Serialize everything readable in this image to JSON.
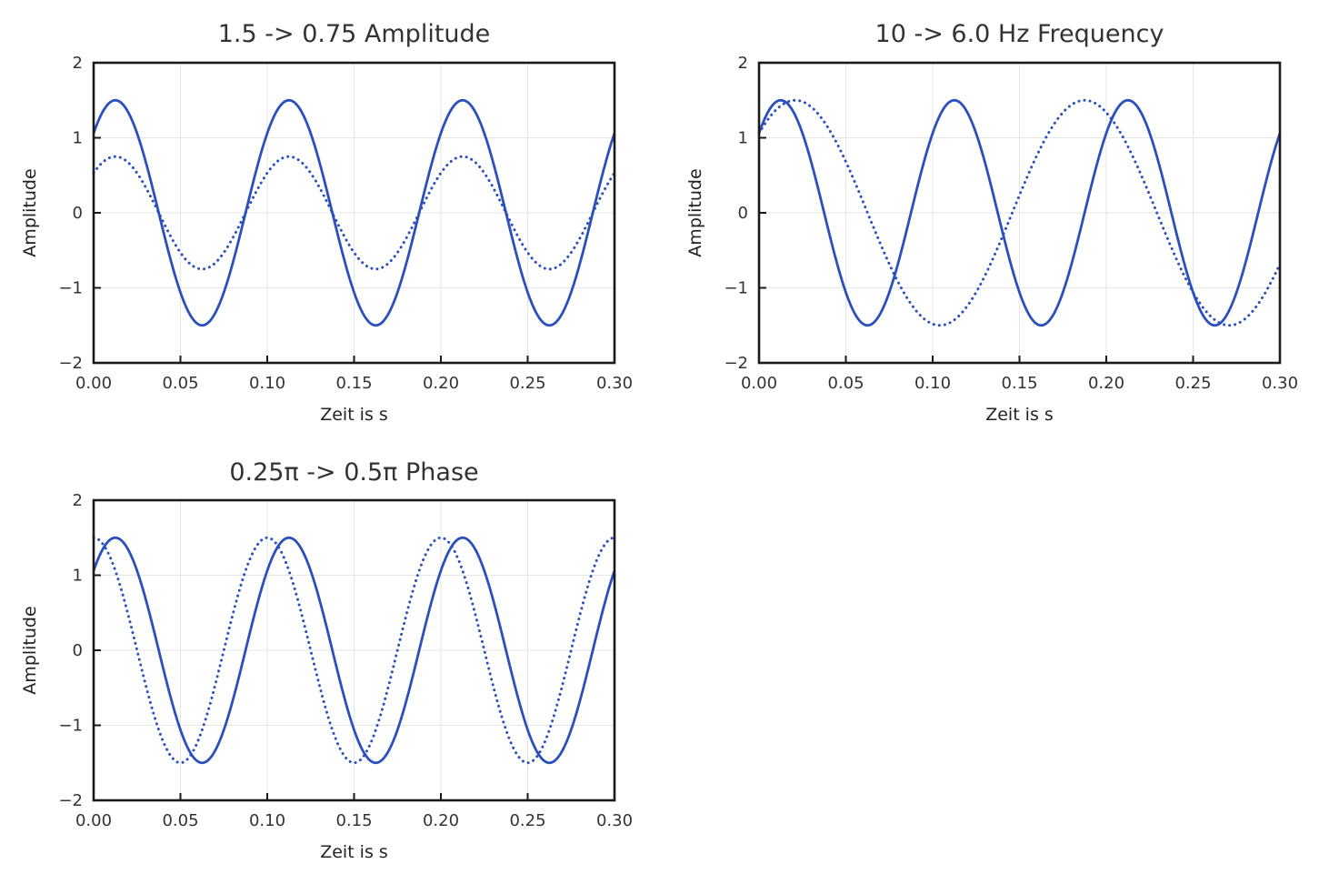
{
  "colors": {
    "line": "#2b4fbd",
    "frame": "#1a1a1a",
    "grid": "#e6e6e6"
  },
  "chart_data": [
    {
      "type": "line",
      "title": "1.5 -> 0.75 Amplitude",
      "xlabel": "Zeit is s",
      "ylabel": "Amplitude",
      "xlim": [
        0,
        0.3
      ],
      "ylim": [
        -2,
        2
      ],
      "xticks": [
        "0.00",
        "0.05",
        "0.10",
        "0.15",
        "0.20",
        "0.25",
        "0.30"
      ],
      "yticks": [
        "2",
        "1",
        "0",
        "−1",
        "−2"
      ],
      "grid": true,
      "series": [
        {
          "style": "solid",
          "amplitude": 1.5,
          "frequency_hz": 10,
          "phase_rad": 0.7854
        },
        {
          "style": "dotted",
          "amplitude": 0.75,
          "frequency_hz": 10,
          "phase_rad": 0.7854
        }
      ]
    },
    {
      "type": "line",
      "title": "10 -> 6.0 Hz Frequency",
      "xlabel": "Zeit is s",
      "ylabel": "Amplitude",
      "xlim": [
        0,
        0.3
      ],
      "ylim": [
        -2,
        2
      ],
      "xticks": [
        "0.00",
        "0.05",
        "0.10",
        "0.15",
        "0.20",
        "0.25",
        "0.30"
      ],
      "yticks": [
        "2",
        "1",
        "0",
        "−1",
        "−2"
      ],
      "grid": true,
      "series": [
        {
          "style": "solid",
          "amplitude": 1.5,
          "frequency_hz": 10,
          "phase_rad": 0.7854
        },
        {
          "style": "dotted",
          "amplitude": 1.5,
          "frequency_hz": 6.0,
          "phase_rad": 0.7854
        }
      ]
    },
    {
      "type": "line",
      "title": "0.25π -> 0.5π Phase",
      "xlabel": "Zeit is s",
      "ylabel": "Amplitude",
      "xlim": [
        0,
        0.3
      ],
      "ylim": [
        -2,
        2
      ],
      "xticks": [
        "0.00",
        "0.05",
        "0.10",
        "0.15",
        "0.20",
        "0.25",
        "0.30"
      ],
      "yticks": [
        "2",
        "1",
        "0",
        "−1",
        "−2"
      ],
      "grid": true,
      "series": [
        {
          "style": "solid",
          "amplitude": 1.5,
          "frequency_hz": 10,
          "phase_rad": 0.7854
        },
        {
          "style": "dotted",
          "amplitude": 1.5,
          "frequency_hz": 10,
          "phase_rad": 1.5708
        }
      ]
    }
  ]
}
